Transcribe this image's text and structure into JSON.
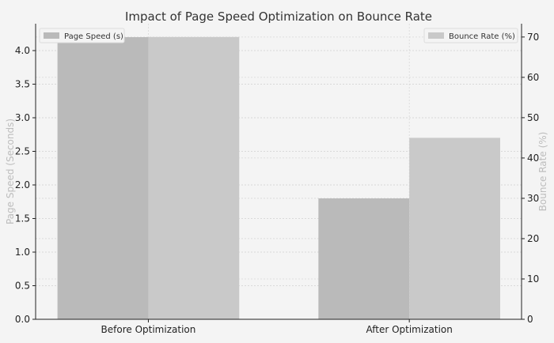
{
  "chart_data": {
    "type": "bar",
    "title": "Impact of Page Speed Optimization on Bounce Rate",
    "categories": [
      "Before Optimization",
      "After Optimization"
    ],
    "left_axis": {
      "label": "Page Speed (Seconds)",
      "ylim": [
        0,
        4.4
      ],
      "ticks": [
        0.0,
        0.5,
        1.0,
        1.5,
        2.0,
        2.5,
        3.0,
        3.5,
        4.0
      ],
      "tick_labels": [
        "0.0",
        "0.5",
        "1.0",
        "1.5",
        "2.0",
        "2.5",
        "3.0",
        "3.5",
        "4.0"
      ]
    },
    "right_axis": {
      "label": "Bounce Rate (%)",
      "ylim": [
        0,
        73.3
      ],
      "ticks": [
        0,
        10,
        20,
        30,
        40,
        50,
        60,
        70
      ],
      "tick_labels": [
        "0",
        "10",
        "20",
        "30",
        "40",
        "50",
        "60",
        "70"
      ]
    },
    "series": [
      {
        "name": "Page Speed (s)",
        "axis": "left",
        "values": [
          4.2,
          1.8
        ],
        "color": "#bababa"
      },
      {
        "name": "Bounce Rate (%)",
        "axis": "right",
        "values": [
          70,
          45
        ],
        "color": "#c9c9c9"
      }
    ],
    "legend": [
      {
        "label": "Page Speed (s)",
        "placement": "top-left"
      },
      {
        "label": "Bounce Rate (%)",
        "placement": "top-right"
      }
    ],
    "grid": true
  }
}
